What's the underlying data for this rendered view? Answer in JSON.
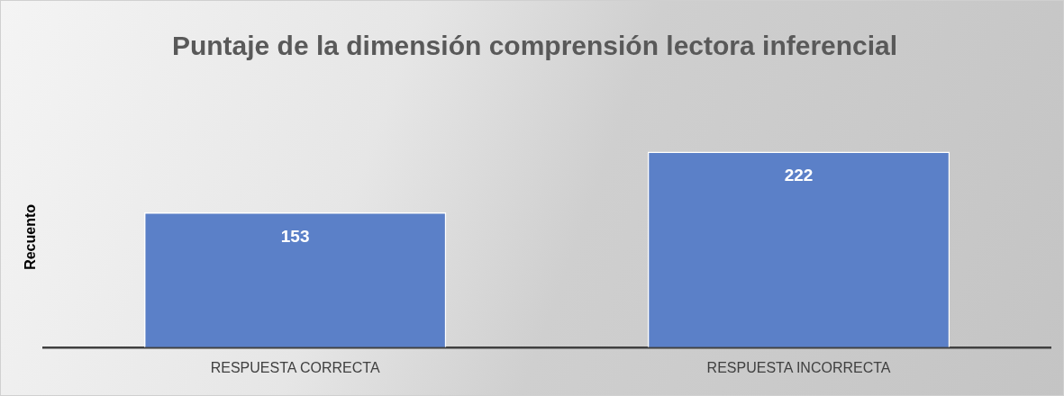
{
  "chart_data": {
    "type": "bar",
    "title": "Puntaje de la dimensión comprensión lectora inferencial",
    "ylabel": "Recuento",
    "categories": [
      "RESPUESTA CORRECTA",
      "RESPUESTA INCORRECTA"
    ],
    "values": [
      153,
      222
    ],
    "color": "#5b80c8",
    "data_labels": true,
    "grid": false,
    "legend": false,
    "tick_labels": "x"
  }
}
